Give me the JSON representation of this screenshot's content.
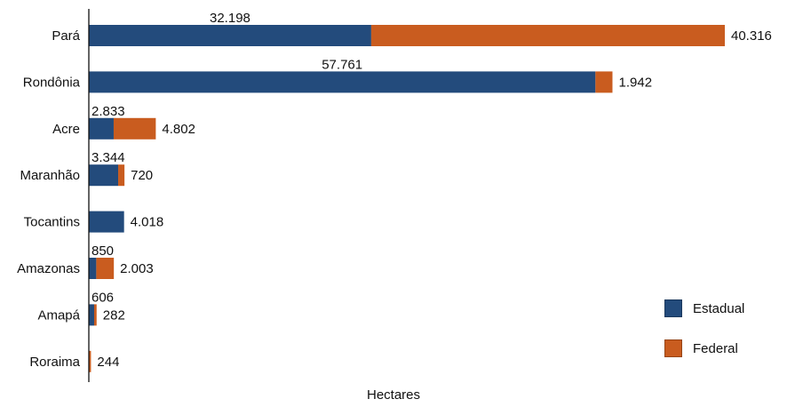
{
  "chart_data": {
    "type": "bar",
    "orientation": "horizontal",
    "stacked": true,
    "categories": [
      "Pará",
      "Rondônia",
      "Acre",
      "Maranhão",
      "Tocantins",
      "Amazonas",
      "Amapá",
      "Roraima"
    ],
    "series": [
      {
        "name": "Estadual",
        "color": "#234b7c",
        "values": [
          32198,
          57761,
          2833,
          3344,
          4018,
          850,
          606,
          0
        ],
        "labels": [
          "32.198",
          "57.761",
          "2.833",
          "3.344",
          "4.018",
          "850",
          "606",
          ""
        ]
      },
      {
        "name": "Federal",
        "color": "#c95c1f",
        "values": [
          40316,
          1942,
          4802,
          720,
          0,
          2003,
          282,
          244
        ],
        "labels": [
          "40.316",
          "1.942",
          "4.802",
          "720",
          "",
          "2.003",
          "282",
          "244"
        ]
      }
    ],
    "xlabel": "Hectares",
    "xlim": [
      0,
      72514
    ],
    "grid": false,
    "legend_position": "bottom-right"
  }
}
